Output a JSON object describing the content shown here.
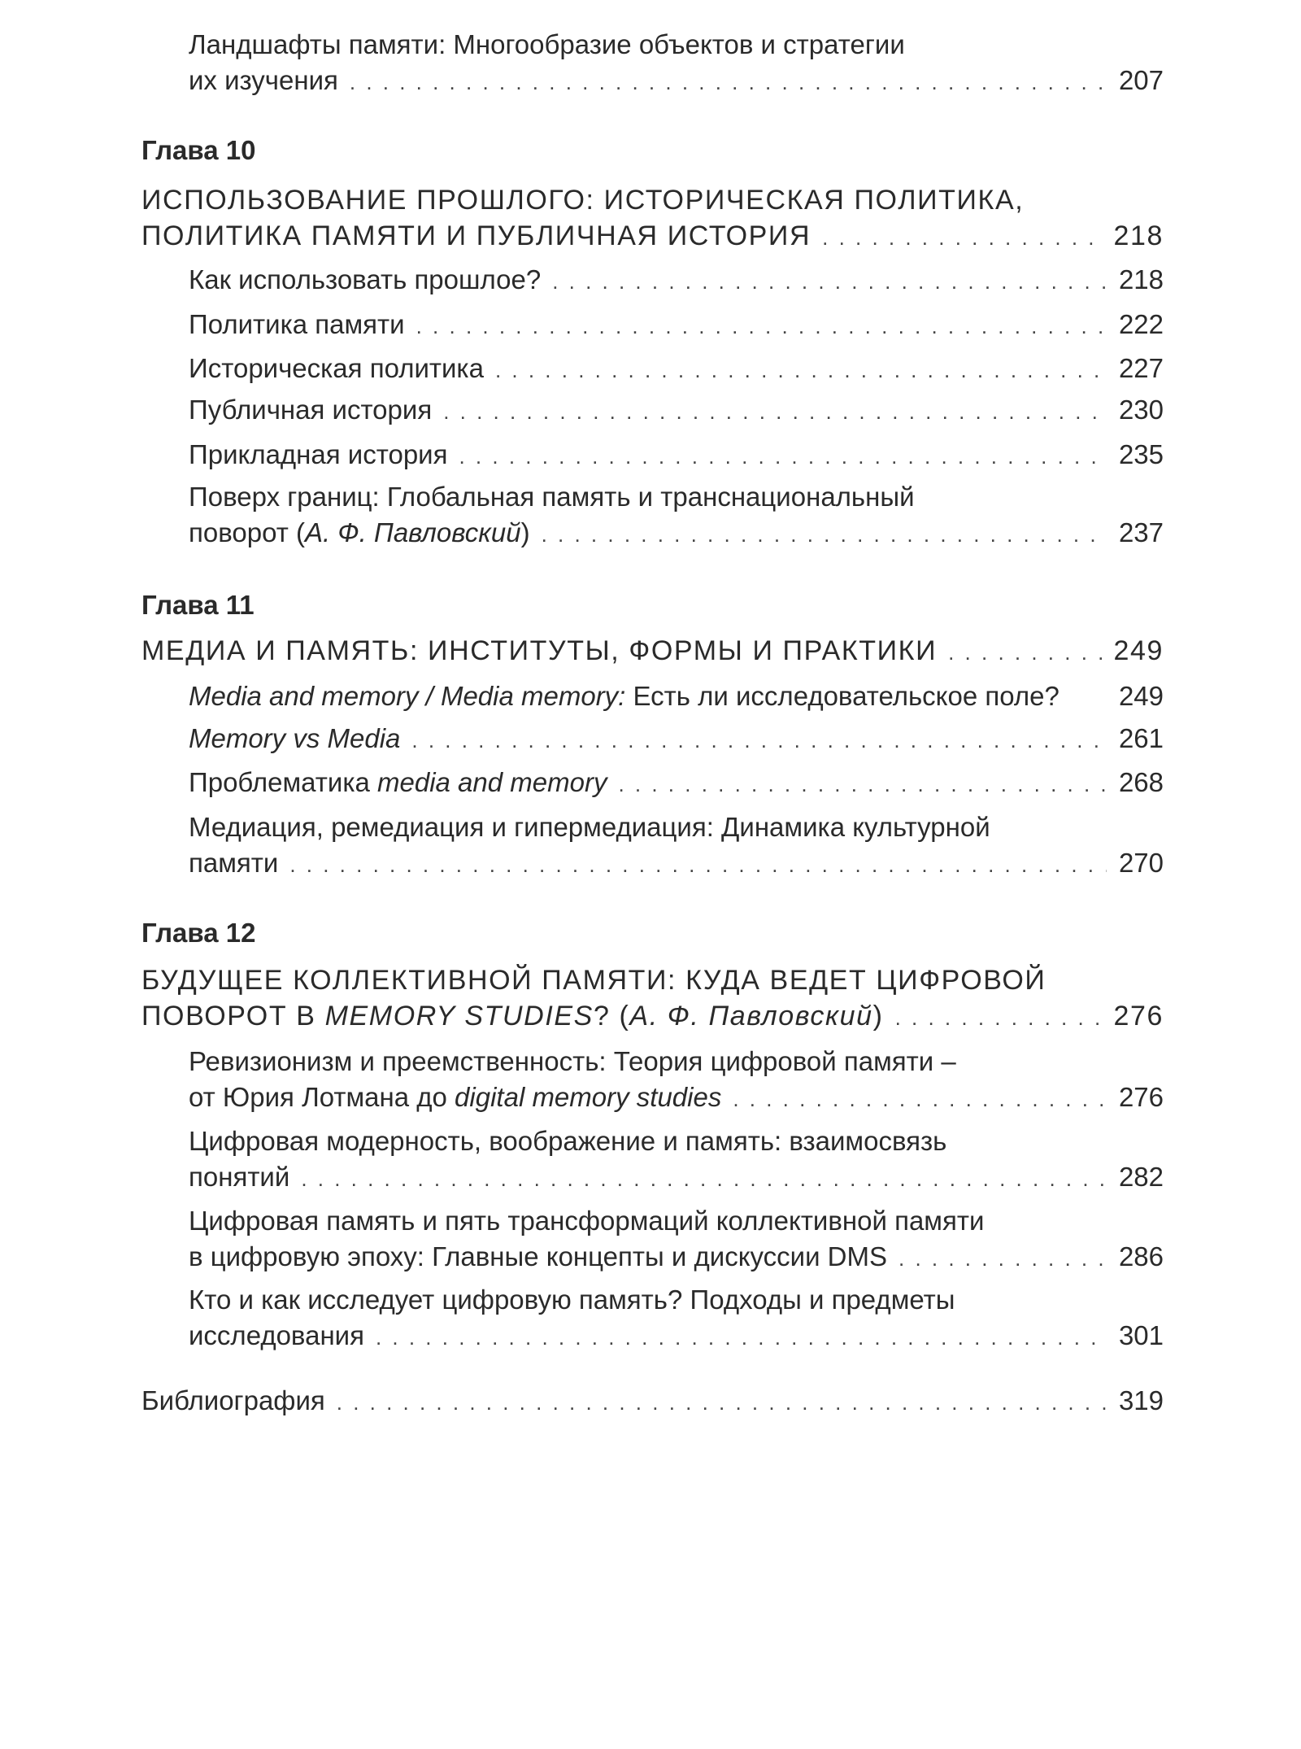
{
  "entries": [
    {
      "kind": "sub",
      "lines": [
        [
          {
            "t": "Ландшафты памяти: Многообразие объектов и стратегии"
          }
        ],
        [
          {
            "t": "их изучения"
          }
        ]
      ],
      "page": "207"
    },
    {
      "kind": "label",
      "text": "Глава 10"
    },
    {
      "kind": "chapter",
      "lines": [
        [
          {
            "t": "ИСПОЛЬЗОВАНИЕ ПРОШЛОГО: ИСТОРИЧЕСКАЯ ПОЛИТИКА,"
          }
        ],
        [
          {
            "t": "ПОЛИТИКА ПАМЯТИ И ПУБЛИЧНАЯ ИСТОРИЯ"
          }
        ]
      ],
      "page": "218"
    },
    {
      "kind": "sub",
      "lines": [
        [
          {
            "t": "Как использовать прошлое?"
          }
        ]
      ],
      "page": "218"
    },
    {
      "kind": "sub",
      "lines": [
        [
          {
            "t": "Политика памяти"
          }
        ]
      ],
      "page": "222"
    },
    {
      "kind": "sub",
      "lines": [
        [
          {
            "t": "Историческая политика"
          }
        ]
      ],
      "page": "227"
    },
    {
      "kind": "sub",
      "lines": [
        [
          {
            "t": "Публичная история"
          }
        ]
      ],
      "page": "230"
    },
    {
      "kind": "sub",
      "lines": [
        [
          {
            "t": "Прикладная история"
          }
        ]
      ],
      "page": "235"
    },
    {
      "kind": "sub",
      "lines": [
        [
          {
            "t": "Поверх границ: Глобальная память и транснациональный"
          }
        ],
        [
          {
            "t": "поворот ("
          },
          {
            "t": "А. Ф. Павловский",
            "i": true
          },
          {
            "t": ")"
          }
        ]
      ],
      "page": "237"
    },
    {
      "kind": "label",
      "text": "Глава 11"
    },
    {
      "kind": "chapter",
      "lines": [
        [
          {
            "t": "МЕДИА И ПАМЯТЬ: ИНСТИТУТЫ, ФОРМЫ И ПРАКТИКИ"
          }
        ]
      ],
      "page": "249"
    },
    {
      "kind": "sub",
      "noleader": true,
      "lines": [
        [
          {
            "t": "Media and memory / Media memory:",
            "i": true
          },
          {
            "t": " Есть ли исследовательское поле?"
          }
        ]
      ],
      "page": "249"
    },
    {
      "kind": "sub",
      "lines": [
        [
          {
            "t": "Memory vs Media",
            "i": true
          }
        ]
      ],
      "page": "261"
    },
    {
      "kind": "sub",
      "lines": [
        [
          {
            "t": "Проблематика "
          },
          {
            "t": "media and memory",
            "i": true
          }
        ]
      ],
      "page": "268"
    },
    {
      "kind": "sub",
      "lines": [
        [
          {
            "t": "Медиация, ремедиация и гипермедиация: Динамика культурной"
          }
        ],
        [
          {
            "t": "памяти"
          }
        ]
      ],
      "page": "270"
    },
    {
      "kind": "label",
      "text": "Глава 12"
    },
    {
      "kind": "chapter",
      "lines": [
        [
          {
            "t": "БУДУЩЕЕ КОЛЛЕКТИВНОЙ ПАМЯТИ: КУДА ВЕДЕТ ЦИФРОВОЙ"
          }
        ],
        [
          {
            "t": "ПОВОРОТ В "
          },
          {
            "t": "MEMORY STUDIES",
            "i": true
          },
          {
            "t": "? ("
          },
          {
            "t": "А. Ф. Павловский",
            "i": true
          },
          {
            "t": ")"
          }
        ]
      ],
      "page": "276"
    },
    {
      "kind": "sub",
      "lines": [
        [
          {
            "t": "Ревизионизм и преемственность: Теория цифровой памяти –"
          }
        ],
        [
          {
            "t": "от Юрия Лотмана до "
          },
          {
            "t": "digital memory studies",
            "i": true
          }
        ]
      ],
      "page": "276"
    },
    {
      "kind": "sub",
      "lines": [
        [
          {
            "t": "Цифровая модерность, воображение и память: взаимосвязь"
          }
        ],
        [
          {
            "t": "понятий"
          }
        ]
      ],
      "page": "282"
    },
    {
      "kind": "sub",
      "lines": [
        [
          {
            "t": "Цифровая память и пять трансформаций коллективной памяти"
          }
        ],
        [
          {
            "t": "в цифровую эпоху: Главные концепты и дискуссии DMS"
          }
        ]
      ],
      "page": "286"
    },
    {
      "kind": "sub",
      "lines": [
        [
          {
            "t": "Кто и как исследует цифровую память? Подходы и предметы"
          }
        ],
        [
          {
            "t": "исследования"
          }
        ]
      ],
      "page": "301"
    },
    {
      "kind": "top",
      "lines": [
        [
          {
            "t": "Библиография"
          }
        ]
      ],
      "page": "319"
    }
  ]
}
